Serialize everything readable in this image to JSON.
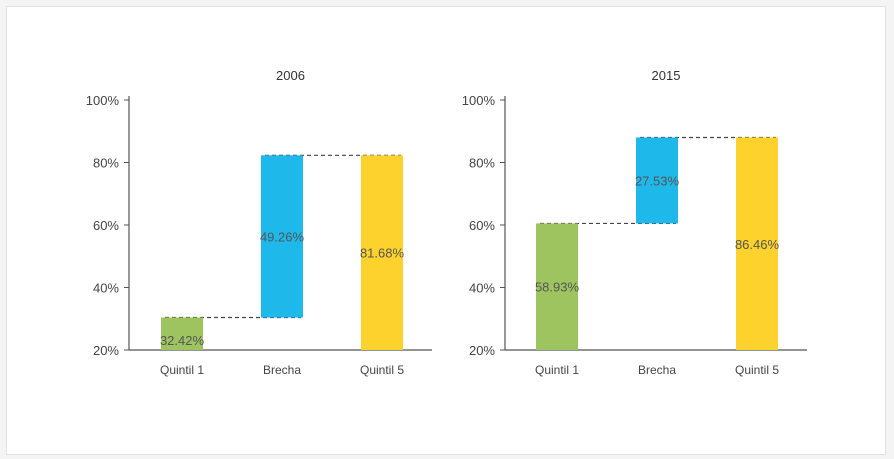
{
  "chart_data": [
    {
      "type": "waterfall",
      "title": "2006",
      "categories": [
        "Quintil 1",
        "Brecha",
        "Quintil 5"
      ],
      "values": [
        32.42,
        49.26,
        81.68
      ],
      "value_labels": [
        "32.42%",
        "49.26%",
        "81.68%"
      ],
      "bars": [
        {
          "category": "Quintil 1",
          "from": 20,
          "to": 30.4,
          "color": "#9dc45f"
        },
        {
          "category": "Brecha",
          "from": 30.4,
          "to": 82.3,
          "color": "#1fb8ea"
        },
        {
          "category": "Quintil 5",
          "from": 20,
          "to": 82.3,
          "color": "#fdd22c"
        }
      ],
      "y_ticks": [
        "100%",
        "80%",
        "60%",
        "40%",
        "20%"
      ],
      "ylim": [
        20,
        100
      ],
      "connectors": true,
      "grid": false,
      "xlabel": "",
      "ylabel": ""
    },
    {
      "type": "waterfall",
      "title": "2015",
      "categories": [
        "Quintil 1",
        "Brecha",
        "Quintil 5"
      ],
      "values": [
        58.93,
        27.53,
        86.46
      ],
      "value_labels": [
        "58.93%",
        "27.53%",
        "86.46%"
      ],
      "bars": [
        {
          "category": "Quintil 1",
          "from": 20,
          "to": 60.5,
          "color": "#9dc45f"
        },
        {
          "category": "Brecha",
          "from": 60.5,
          "to": 88,
          "color": "#1fb8ea"
        },
        {
          "category": "Quintil 5",
          "from": 20,
          "to": 88,
          "color": "#fdd22c"
        }
      ],
      "y_ticks": [
        "100%",
        "80%",
        "60%",
        "40%",
        "20%"
      ],
      "ylim": [
        20,
        100
      ],
      "connectors": true,
      "grid": false,
      "xlabel": "",
      "ylabel": ""
    }
  ]
}
